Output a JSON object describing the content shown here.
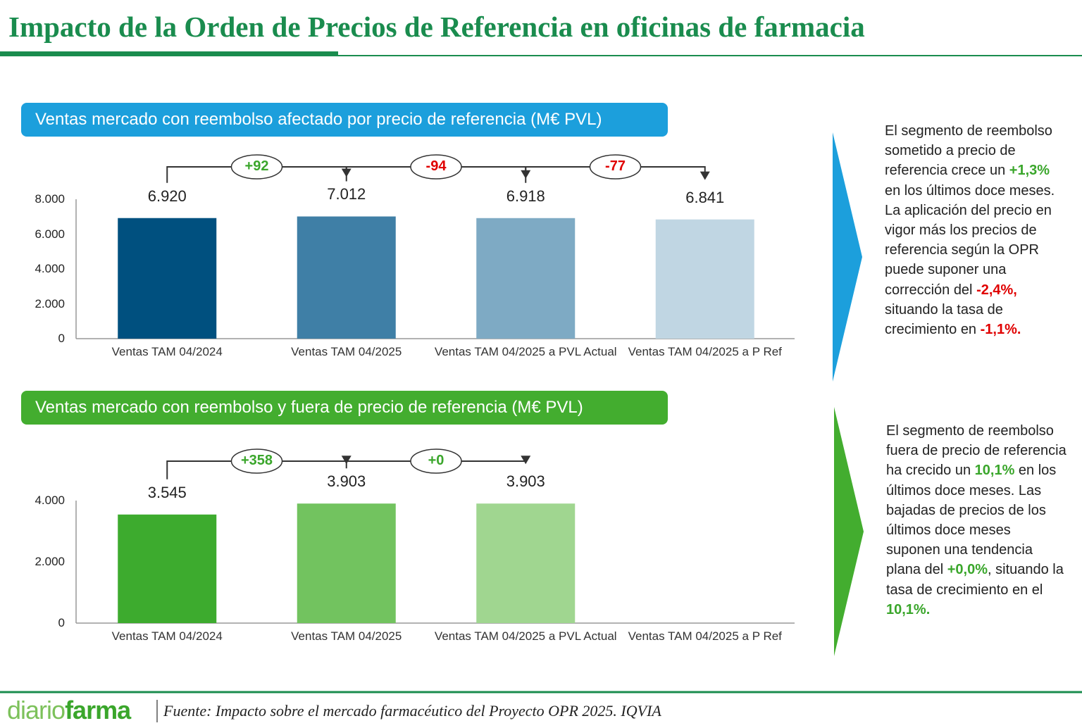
{
  "header": {
    "title": "Impacto de la Orden de Precios  de Referencia en oficinas de farmacia"
  },
  "chart_data": [
    {
      "type": "bar",
      "title": "Ventas mercado con reembolso afectado por precio de referencia (M€ PVL)",
      "title_color": "#1c9fdc",
      "categories": [
        "Ventas TAM 04/2024",
        "Ventas TAM 04/2025",
        "Ventas TAM 04/2025 a PVL Actual",
        "Ventas TAM 04/2025 a P Ref"
      ],
      "values": [
        6920,
        7012,
        6918,
        6841
      ],
      "value_labels": [
        "6.920",
        "7.012",
        "6.918",
        "6.841"
      ],
      "colors": [
        "#00507f",
        "#3f7fa6",
        "#7eaac4",
        "#c0d6e3"
      ],
      "deltas": [
        92,
        -94,
        -77
      ],
      "delta_labels": [
        "+92",
        "-94",
        "-77"
      ],
      "increase_color": "#3aa62b",
      "decrease_color": "#e00000",
      "ylim": [
        0,
        8000
      ],
      "yticks": [
        0,
        {
          "value": 2000,
          "label": "2.000"
        },
        {
          "value": 4000,
          "label": "4.000"
        },
        {
          "value": 6000,
          "label": "6.000"
        },
        {
          "value": 8000,
          "label": "8.000"
        }
      ],
      "grid": false
    },
    {
      "type": "bar",
      "title": "Ventas mercado con reembolso y fuera de precio de referencia (M€ PVL)",
      "title_color": "#43ad2f",
      "categories": [
        "Ventas TAM 04/2024",
        "Ventas TAM 04/2025",
        "Ventas TAM 04/2025 a PVL Actual",
        "Ventas TAM 04/2025 a P Ref"
      ],
      "values": [
        3545,
        3903,
        3903,
        null
      ],
      "value_labels": [
        "3.545",
        "3.903",
        "3.903",
        null
      ],
      "colors": [
        "#3dab2e",
        "#72c35f",
        "#a0d690",
        null
      ],
      "deltas": [
        358,
        0
      ],
      "delta_labels": [
        "+358",
        "+0"
      ],
      "increase_color": "#3aa62b",
      "decrease_color": "#e00000",
      "ylim": [
        0,
        4000
      ],
      "yticks": [
        0,
        {
          "value": 2000,
          "label": "2.000"
        },
        {
          "value": 4000,
          "label": "4.000"
        }
      ],
      "grid": false
    }
  ],
  "notes": [
    {
      "arrow_color": "#1c9fdc",
      "segments": [
        {
          "text": "El segmento de reembolso sometido a precio de referencia crece un "
        },
        {
          "text": "+1,3%",
          "color": "#3aa62b"
        },
        {
          "text": " en los últimos doce meses. La aplicación del precio en vigor más los precios de referencia según la OPR puede suponer una corrección del "
        },
        {
          "text": "-2,4%,",
          "color": "#e00000"
        },
        {
          "text": " situando la tasa de crecimiento en "
        },
        {
          "text": "-1,1%.",
          "color": "#e00000"
        }
      ]
    },
    {
      "arrow_color": "#43ad2f",
      "segments": [
        {
          "text": "El segmento de reembolso fuera de precio de referencia ha crecido un "
        },
        {
          "text": "10,1%",
          "color": "#3aa62b"
        },
        {
          "text": " en los últimos doce meses. Las bajadas de precios de los últimos doce meses suponen una tendencia plana del "
        },
        {
          "text": "+0,0%",
          "color": "#3aa62b"
        },
        {
          "text": ", situando la tasa de crecimiento en el "
        },
        {
          "text": "10,1%.",
          "color": "#3aa62b"
        }
      ]
    }
  ],
  "footer": {
    "logo": [
      "diario",
      "farma"
    ],
    "source": "Fuente: Impacto sobre el mercado farmacéutico del Proyecto OPR 2025. IQVIA"
  }
}
